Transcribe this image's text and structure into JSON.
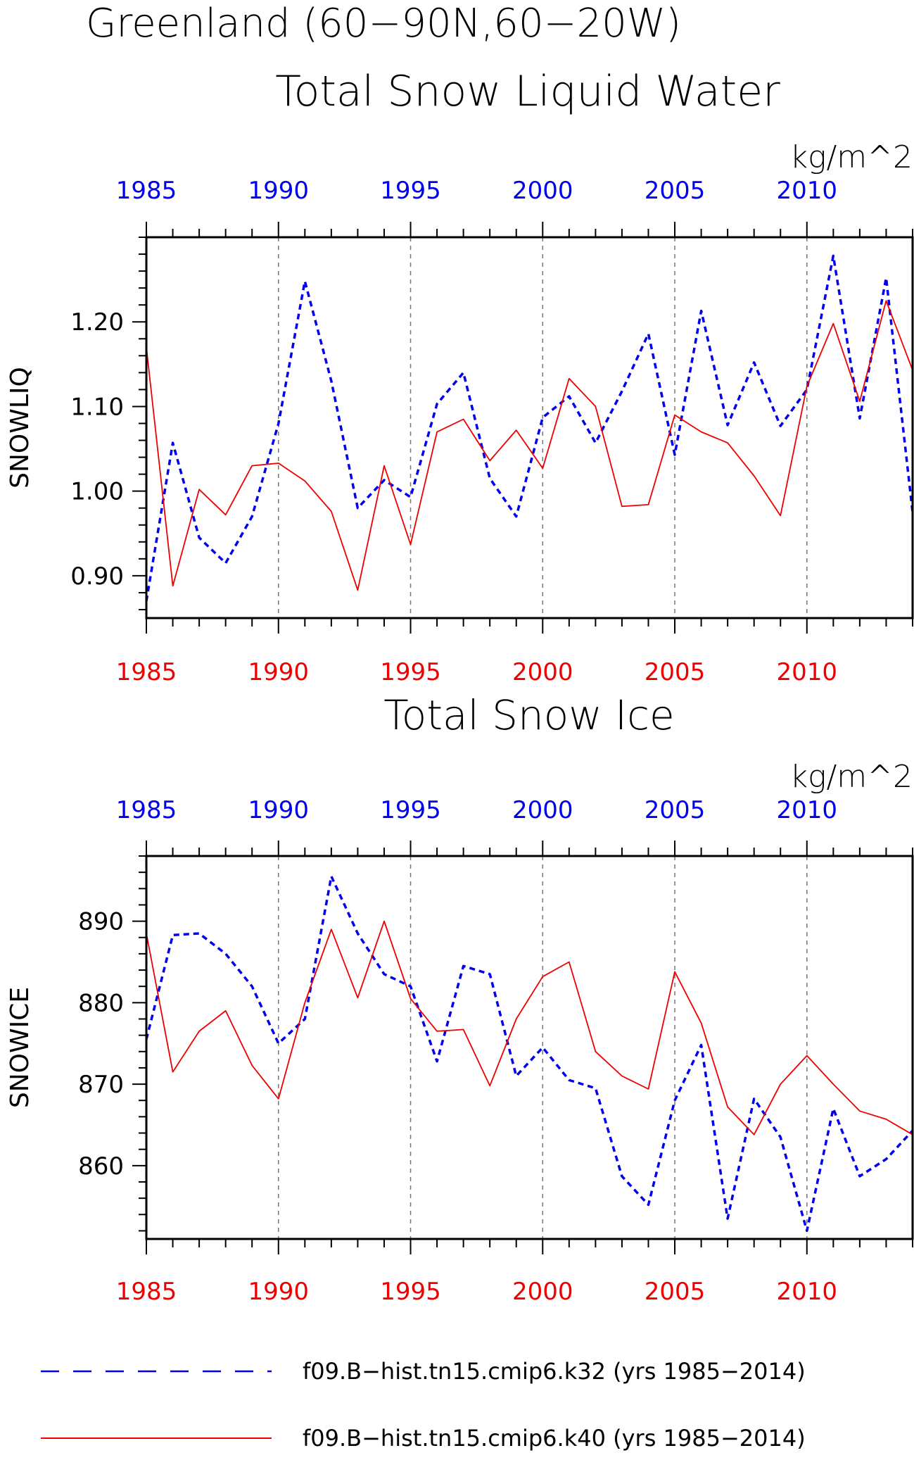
{
  "figure": {
    "title_line1": "Greenland (60−90N,60−20W)",
    "colors": {
      "blue": "#0000ee",
      "red": "#ee0000",
      "grid": "#777777",
      "frame": "#000000"
    }
  },
  "legend": {
    "entries": [
      {
        "label": "f09.B−hist.tn15.cmip6.k32 (yrs 1985−2014)",
        "color": "#0000ee",
        "style": "dashed"
      },
      {
        "label": "f09.B−hist.tn15.cmip6.k40 (yrs 1985−2014)",
        "color": "#ee0000",
        "style": "solid"
      }
    ]
  },
  "chart_data": [
    {
      "type": "line",
      "title": "Total Snow Liquid Water",
      "units": "kg/m^2",
      "ylabel": "SNOWLIQ",
      "xlim": [
        1985,
        2014
      ],
      "ylim": [
        0.85,
        1.3
      ],
      "yticks": [
        "0.90",
        "1.00",
        "1.10",
        "1.20"
      ],
      "xticks": [
        "1985",
        "1990",
        "1995",
        "2000",
        "2005",
        "2010"
      ],
      "grid_x": true,
      "x": [
        1985,
        1986,
        1987,
        1988,
        1989,
        1990,
        1991,
        1992,
        1993,
        1994,
        1995,
        1996,
        1997,
        1998,
        1999,
        2000,
        2001,
        2002,
        2003,
        2004,
        2005,
        2006,
        2007,
        2008,
        2009,
        2010,
        2011,
        2012,
        2013,
        2014
      ],
      "series": [
        {
          "name": "f09.B−hist.tn15.cmip6.k32 (yrs 1985−2014)",
          "color": "#0000ee",
          "style": "dashed",
          "values": [
            0.87,
            1.057,
            0.945,
            0.915,
            0.97,
            1.08,
            1.248,
            1.13,
            0.98,
            1.013,
            0.993,
            1.103,
            1.14,
            1.015,
            0.97,
            1.087,
            1.112,
            1.057,
            1.118,
            1.186,
            1.043,
            1.213,
            1.078,
            1.152,
            1.077,
            1.12,
            1.278,
            1.086,
            1.252,
            0.975
          ]
        },
        {
          "name": "f09.B−hist.tn15.cmip6.k40 (yrs 1985−2014)",
          "color": "#ee0000",
          "style": "solid",
          "values": [
            1.17,
            0.888,
            1.002,
            0.972,
            1.03,
            1.033,
            1.012,
            0.976,
            0.883,
            1.03,
            0.937,
            1.07,
            1.085,
            1.036,
            1.072,
            1.027,
            1.133,
            1.1,
            0.982,
            0.984,
            1.09,
            1.07,
            1.057,
            1.018,
            0.971,
            1.124,
            1.198,
            1.106,
            1.225,
            1.143
          ]
        }
      ]
    },
    {
      "type": "line",
      "title": "Total Snow Ice",
      "units": "kg/m^2",
      "ylabel": "SNOWICE",
      "xlim": [
        1985,
        2014
      ],
      "ylim": [
        851,
        898
      ],
      "yticks": [
        "860",
        "870",
        "880",
        "890"
      ],
      "xticks": [
        "1985",
        "1990",
        "1995",
        "2000",
        "2005",
        "2010"
      ],
      "grid_x": true,
      "x": [
        1985,
        1986,
        1987,
        1988,
        1989,
        1990,
        1991,
        1992,
        1993,
        1994,
        1995,
        1996,
        1997,
        1998,
        1999,
        2000,
        2001,
        2002,
        2003,
        2004,
        2005,
        2006,
        2007,
        2008,
        2009,
        2010,
        2011,
        2012,
        2013,
        2014
      ],
      "series": [
        {
          "name": "f09.B−hist.tn15.cmip6.k32 (yrs 1985−2014)",
          "color": "#0000ee",
          "style": "dashed",
          "values": [
            875.5,
            888.3,
            888.5,
            886.0,
            882.0,
            875.0,
            878.0,
            895.5,
            888.5,
            883.5,
            882.0,
            872.8,
            884.5,
            883.5,
            871.0,
            874.5,
            870.5,
            869.5,
            858.7,
            855.2,
            868.0,
            874.8,
            853.5,
            868.2,
            863.5,
            852.0,
            867.0,
            858.7,
            860.8,
            864.3
          ]
        },
        {
          "name": "f09.B−hist.tn15.cmip6.k40 (yrs 1985−2014)",
          "color": "#ee0000",
          "style": "solid",
          "values": [
            888.5,
            871.5,
            876.5,
            879.0,
            872.3,
            868.2,
            880.0,
            889.0,
            880.6,
            890.0,
            880.5,
            876.5,
            876.7,
            869.8,
            878.0,
            883.2,
            885.0,
            874.0,
            871.0,
            869.4,
            883.8,
            877.5,
            867.2,
            863.8,
            870.0,
            873.5,
            870.0,
            866.7,
            865.7,
            863.8
          ]
        }
      ]
    }
  ]
}
